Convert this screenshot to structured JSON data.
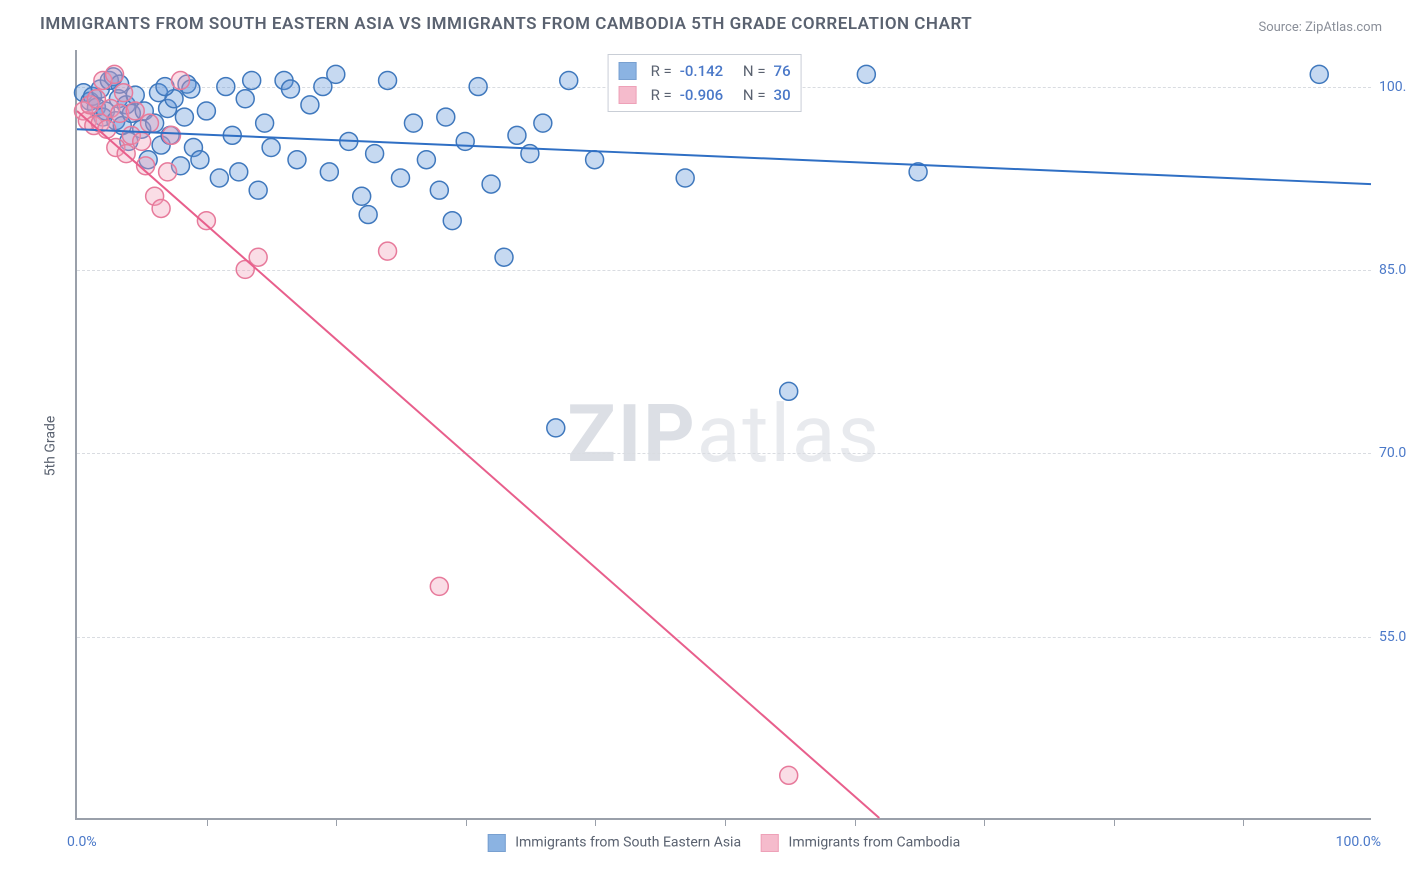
{
  "title": "IMMIGRANTS FROM SOUTH EASTERN ASIA VS IMMIGRANTS FROM CAMBODIA 5TH GRADE CORRELATION CHART",
  "source": "Source: ZipAtlas.com",
  "ylabel": "5th Grade",
  "watermark_bold": "ZIP",
  "watermark_rest": "atlas",
  "chart": {
    "type": "scatter",
    "xlim": [
      0,
      100
    ],
    "ylim": [
      40,
      103
    ],
    "x_axis_min_label": "0.0%",
    "x_axis_max_label": "100.0%",
    "yticks": [
      55,
      70,
      85,
      100
    ],
    "ytick_labels": [
      "55.0%",
      "70.0%",
      "85.0%",
      "100.0%"
    ],
    "xtick_positions": [
      10,
      20,
      30,
      40,
      50,
      60,
      70,
      80,
      90
    ],
    "background_color": "#ffffff",
    "grid_color": "#d9dce1",
    "axis_color": "#9aa0aa",
    "marker_radius": 9,
    "marker_fill_opacity": 0.35,
    "marker_stroke_width": 1.5,
    "line_width": 2,
    "series": [
      {
        "name": "Immigrants from South Eastern Asia",
        "color": "#5b93d6",
        "stroke": "#3f78bd",
        "line_color": "#2f6fc4",
        "R": "-0.142",
        "N": "76",
        "trend": {
          "x1": 0,
          "y1": 96.5,
          "x2": 100,
          "y2": 92.0
        },
        "points": [
          [
            0.5,
            99.5
          ],
          [
            1,
            98.8
          ],
          [
            1.2,
            99.2
          ],
          [
            1.5,
            98.3
          ],
          [
            1.8,
            99.8
          ],
          [
            2,
            97.5
          ],
          [
            2.2,
            98.0
          ],
          [
            2.5,
            100.5
          ],
          [
            3,
            97.2
          ],
          [
            3.2,
            99.0
          ],
          [
            3.5,
            96.8
          ],
          [
            3.8,
            98.5
          ],
          [
            4,
            95.5
          ],
          [
            4.2,
            97.8
          ],
          [
            4.5,
            99.3
          ],
          [
            5,
            96.5
          ],
          [
            5.2,
            98.0
          ],
          [
            5.5,
            94.0
          ],
          [
            6,
            97.0
          ],
          [
            6.3,
            99.5
          ],
          [
            6.5,
            95.2
          ],
          [
            7,
            98.2
          ],
          [
            7.2,
            96.0
          ],
          [
            7.5,
            99.0
          ],
          [
            8,
            93.5
          ],
          [
            8.3,
            97.5
          ],
          [
            8.5,
            100.2
          ],
          [
            9,
            95.0
          ],
          [
            9.5,
            94.0
          ],
          [
            10,
            98.0
          ],
          [
            11,
            92.5
          ],
          [
            11.5,
            100.0
          ],
          [
            12,
            96.0
          ],
          [
            12.5,
            93.0
          ],
          [
            13,
            99.0
          ],
          [
            14,
            91.5
          ],
          [
            14.5,
            97.0
          ],
          [
            15,
            95.0
          ],
          [
            16,
            100.5
          ],
          [
            17,
            94.0
          ],
          [
            18,
            98.5
          ],
          [
            19,
            100.0
          ],
          [
            19.5,
            93.0
          ],
          [
            20,
            101.0
          ],
          [
            21,
            95.5
          ],
          [
            22,
            91.0
          ],
          [
            23,
            94.5
          ],
          [
            24,
            100.5
          ],
          [
            25,
            92.5
          ],
          [
            26,
            97.0
          ],
          [
            27,
            94.0
          ],
          [
            28,
            91.5
          ],
          [
            29,
            89.0
          ],
          [
            30,
            95.5
          ],
          [
            31,
            100.0
          ],
          [
            32,
            92.0
          ],
          [
            33,
            86.0
          ],
          [
            34,
            96.0
          ],
          [
            35,
            94.5
          ],
          [
            36,
            97.0
          ],
          [
            37,
            72.0
          ],
          [
            38,
            100.5
          ],
          [
            40,
            94.0
          ],
          [
            47,
            92.5
          ],
          [
            55,
            75.0
          ],
          [
            61,
            101.0
          ],
          [
            65,
            93.0
          ],
          [
            96,
            101.0
          ],
          [
            2.8,
            100.8
          ],
          [
            3.3,
            100.2
          ],
          [
            6.8,
            100.0
          ],
          [
            8.8,
            99.8
          ],
          [
            13.5,
            100.5
          ],
          [
            16.5,
            99.8
          ],
          [
            22.5,
            89.5
          ],
          [
            28.5,
            97.5
          ]
        ]
      },
      {
        "name": "Immigrants from Cambodia",
        "color": "#f29fb7",
        "stroke": "#e77a9b",
        "line_color": "#e85f8c",
        "R": "-0.906",
        "N": "30",
        "trend": {
          "x1": 0,
          "y1": 98.0,
          "x2": 62,
          "y2": 40.0
        },
        "points": [
          [
            0.5,
            98.0
          ],
          [
            0.8,
            97.2
          ],
          [
            1,
            98.5
          ],
          [
            1.3,
            96.8
          ],
          [
            1.5,
            99.0
          ],
          [
            1.8,
            97.0
          ],
          [
            2,
            100.5
          ],
          [
            2.3,
            96.5
          ],
          [
            2.6,
            98.2
          ],
          [
            2.9,
            101.0
          ],
          [
            3,
            95.0
          ],
          [
            3.3,
            97.8
          ],
          [
            3.6,
            99.5
          ],
          [
            3.8,
            94.5
          ],
          [
            4.2,
            96.0
          ],
          [
            4.5,
            98.0
          ],
          [
            5,
            95.5
          ],
          [
            5.3,
            93.5
          ],
          [
            5.6,
            97.0
          ],
          [
            6,
            91.0
          ],
          [
            6.5,
            90.0
          ],
          [
            7,
            93.0
          ],
          [
            7.3,
            96.0
          ],
          [
            8,
            100.5
          ],
          [
            10,
            89.0
          ],
          [
            13,
            85.0
          ],
          [
            14,
            86.0
          ],
          [
            24,
            86.5
          ],
          [
            28,
            59.0
          ],
          [
            55,
            43.5
          ]
        ]
      }
    ]
  },
  "legend_labels": {
    "series1": "Immigrants from South Eastern Asia",
    "series2": "Immigrants from Cambodia"
  },
  "top_legend": {
    "r_label": "R =",
    "n_label": "N ="
  }
}
